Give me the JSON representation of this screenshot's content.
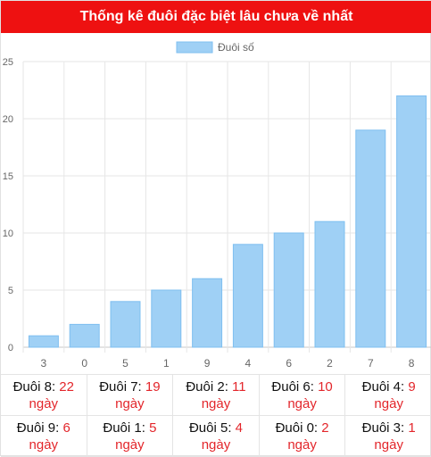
{
  "header": {
    "title": "Thống kê đuôi đặc biệt lâu chưa về nhất"
  },
  "colors": {
    "header_bg": "#ee1111",
    "bar_fill": "#9fd0f5",
    "bar_stroke": "#7fbff0",
    "accent_red": "#e3262b"
  },
  "chart_data": {
    "type": "bar",
    "categories": [
      "3",
      "0",
      "5",
      "1",
      "9",
      "4",
      "6",
      "2",
      "7",
      "8"
    ],
    "series": [
      {
        "name": "Đuôi số",
        "values": [
          1,
          2,
          4,
          5,
          6,
          9,
          10,
          11,
          19,
          22
        ]
      }
    ],
    "title": "",
    "xlabel": "",
    "ylabel": "",
    "ylim": [
      0,
      25
    ],
    "yticks": [
      0,
      5,
      10,
      15,
      20,
      25
    ],
    "grid": true,
    "legend": "top-center"
  },
  "stats": [
    {
      "label": "Đuôi 8:",
      "value": "22",
      "unit": "ngày"
    },
    {
      "label": "Đuôi 7:",
      "value": "19",
      "unit": "ngày"
    },
    {
      "label": "Đuôi 2:",
      "value": "11",
      "unit": "ngày"
    },
    {
      "label": "Đuôi 6:",
      "value": "10",
      "unit": "ngày"
    },
    {
      "label": "Đuôi 4:",
      "value": "9",
      "unit": "ngày"
    },
    {
      "label": "Đuôi 9:",
      "value": "6",
      "unit": "ngày"
    },
    {
      "label": "Đuôi 1:",
      "value": "5",
      "unit": "ngày"
    },
    {
      "label": "Đuôi 5:",
      "value": "4",
      "unit": "ngày"
    },
    {
      "label": "Đuôi 0:",
      "value": "2",
      "unit": "ngày"
    },
    {
      "label": "Đuôi 3:",
      "value": "1",
      "unit": "ngày"
    }
  ]
}
